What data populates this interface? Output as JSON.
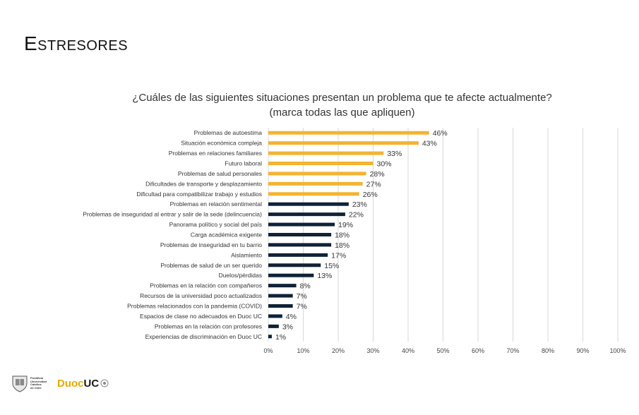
{
  "page": {
    "title": "Estresores"
  },
  "question": {
    "line1": "¿Cuáles de las siguientes situaciones presentan un problema que te afecte actualmente?",
    "line2": "(marca todas las que apliquen)"
  },
  "chart_data": {
    "type": "bar",
    "orientation": "horizontal",
    "xlim": [
      0,
      100
    ],
    "xticks": [
      "0%",
      "10%",
      "20%",
      "30%",
      "40%",
      "50%",
      "60%",
      "70%",
      "80%",
      "90%",
      "100%"
    ],
    "grid": true,
    "colors": {
      "highlight": "#f2b431",
      "normal": "#0f2236"
    },
    "categories": [
      "Problemas de autoestima",
      "Situación económica compleja",
      "Problemas en relaciones familiares",
      "Futuro laboral",
      "Problemas de salud personales",
      "Dificultades de transporte y desplazamiento",
      "Dificultad para compatibilizar trabajo y estudios",
      "Problemas en relación sentimental",
      "Problemas de inseguridad al entrar y salir de la sede (delincuencia)",
      "Panorama político y social del país",
      "Carga académica exigente",
      "Problemas de inseguridad en tu barrio",
      "Aislamiento",
      "Problemas de salud de un ser querido",
      "Duelos/pérdidas",
      "Problemas en la relación con compañeros",
      "Recursos de la universidad poco actualizados",
      "Problemas relacionados con la pandemia (COVID)",
      "Espacios de clase no adecuados en Duoc UC",
      "Problemas en la relación con profesores",
      "Experiencias de discriminación en Duoc UC"
    ],
    "values": [
      46,
      43,
      33,
      30,
      28,
      27,
      26,
      23,
      22,
      19,
      18,
      18,
      17,
      15,
      13,
      8,
      7,
      7,
      4,
      3,
      1
    ],
    "highlighted": [
      true,
      true,
      true,
      true,
      true,
      true,
      true,
      false,
      false,
      false,
      false,
      false,
      false,
      false,
      false,
      false,
      false,
      false,
      false,
      false,
      false
    ],
    "labels": [
      "46%",
      "43%",
      "33%",
      "30%",
      "28%",
      "27%",
      "26%",
      "23%",
      "22%",
      "19%",
      "18%",
      "18%",
      "17%",
      "15%",
      "13%",
      "8%",
      "7%",
      "7%",
      "4%",
      "3%",
      "1%"
    ]
  },
  "footer": {
    "uc_lines": [
      "Pontificia",
      "Universidad",
      "Católica",
      "de Chile"
    ],
    "duoc_part": "Duoc",
    "uc_part": "UC"
  }
}
